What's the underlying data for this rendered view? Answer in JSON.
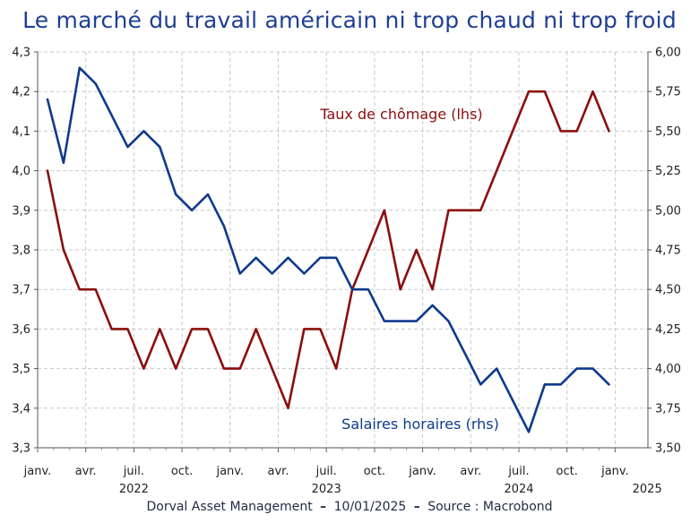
{
  "title": "Le marché du travail américain ni trop chaud ni trop froid",
  "footer": {
    "left": "Dorval Asset Management",
    "date": "10/01/2025",
    "source": "Source : Macrobond"
  },
  "chart_data": {
    "type": "line",
    "title": "Le marché du travail américain ni trop chaud ni trop froid",
    "x": [
      "2022-01",
      "2022-02",
      "2022-03",
      "2022-04",
      "2022-05",
      "2022-06",
      "2022-07",
      "2022-08",
      "2022-09",
      "2022-10",
      "2022-11",
      "2022-12",
      "2023-01",
      "2023-02",
      "2023-03",
      "2023-04",
      "2023-05",
      "2023-06",
      "2023-07",
      "2023-08",
      "2023-09",
      "2023-10",
      "2023-11",
      "2023-12",
      "2024-01",
      "2024-02",
      "2024-03",
      "2024-04",
      "2024-05",
      "2024-06",
      "2024-07",
      "2024-08",
      "2024-09",
      "2024-10",
      "2024-11",
      "2024-12"
    ],
    "x_tick_labels": [
      "janv.",
      "avr.",
      "juil.",
      "oct.",
      "janv.",
      "avr.",
      "juil.",
      "oct.",
      "janv.",
      "avr.",
      "juil.",
      "oct.",
      "janv."
    ],
    "year_labels": [
      "2022",
      "2023",
      "2024",
      "2025"
    ],
    "left_axis": {
      "ylim": [
        3.3,
        4.3
      ],
      "ticks": [
        "3,3",
        "3,4",
        "3,5",
        "3,6",
        "3,7",
        "3,8",
        "3,9",
        "4,0",
        "4,1",
        "4,2",
        "4,3"
      ]
    },
    "right_axis": {
      "ylim": [
        3.5,
        6.0
      ],
      "ticks": [
        "3,50",
        "3,75",
        "4,00",
        "4,25",
        "4,50",
        "4,75",
        "5,00",
        "5,25",
        "5,50",
        "5,75",
        "6,00"
      ]
    },
    "grid": true,
    "series": [
      {
        "name": "Taux de chômage (lhs)",
        "axis": "left",
        "color": "#8b0e0e",
        "values": [
          4.0,
          3.8,
          3.7,
          3.7,
          3.6,
          3.6,
          3.5,
          3.6,
          3.5,
          3.6,
          3.6,
          3.5,
          3.5,
          3.6,
          3.5,
          3.4,
          3.6,
          3.6,
          3.5,
          3.7,
          3.8,
          3.9,
          3.7,
          3.8,
          3.7,
          3.9,
          3.9,
          3.9,
          4.0,
          4.1,
          4.2,
          4.2,
          4.1,
          4.1,
          4.2,
          4.1
        ]
      },
      {
        "name": "Salaires horaires (rhs)",
        "axis": "right",
        "color": "#0f3a8c",
        "values": [
          5.7,
          5.3,
          5.9,
          5.8,
          5.6,
          5.4,
          5.5,
          5.4,
          5.1,
          5.0,
          5.1,
          4.9,
          4.6,
          4.7,
          4.6,
          4.7,
          4.6,
          4.7,
          4.7,
          4.5,
          4.5,
          4.3,
          4.3,
          4.3,
          4.4,
          4.3,
          4.1,
          3.9,
          4.0,
          3.8,
          3.6,
          3.9,
          3.9,
          4.0,
          4.0,
          3.9
        ]
      }
    ]
  }
}
